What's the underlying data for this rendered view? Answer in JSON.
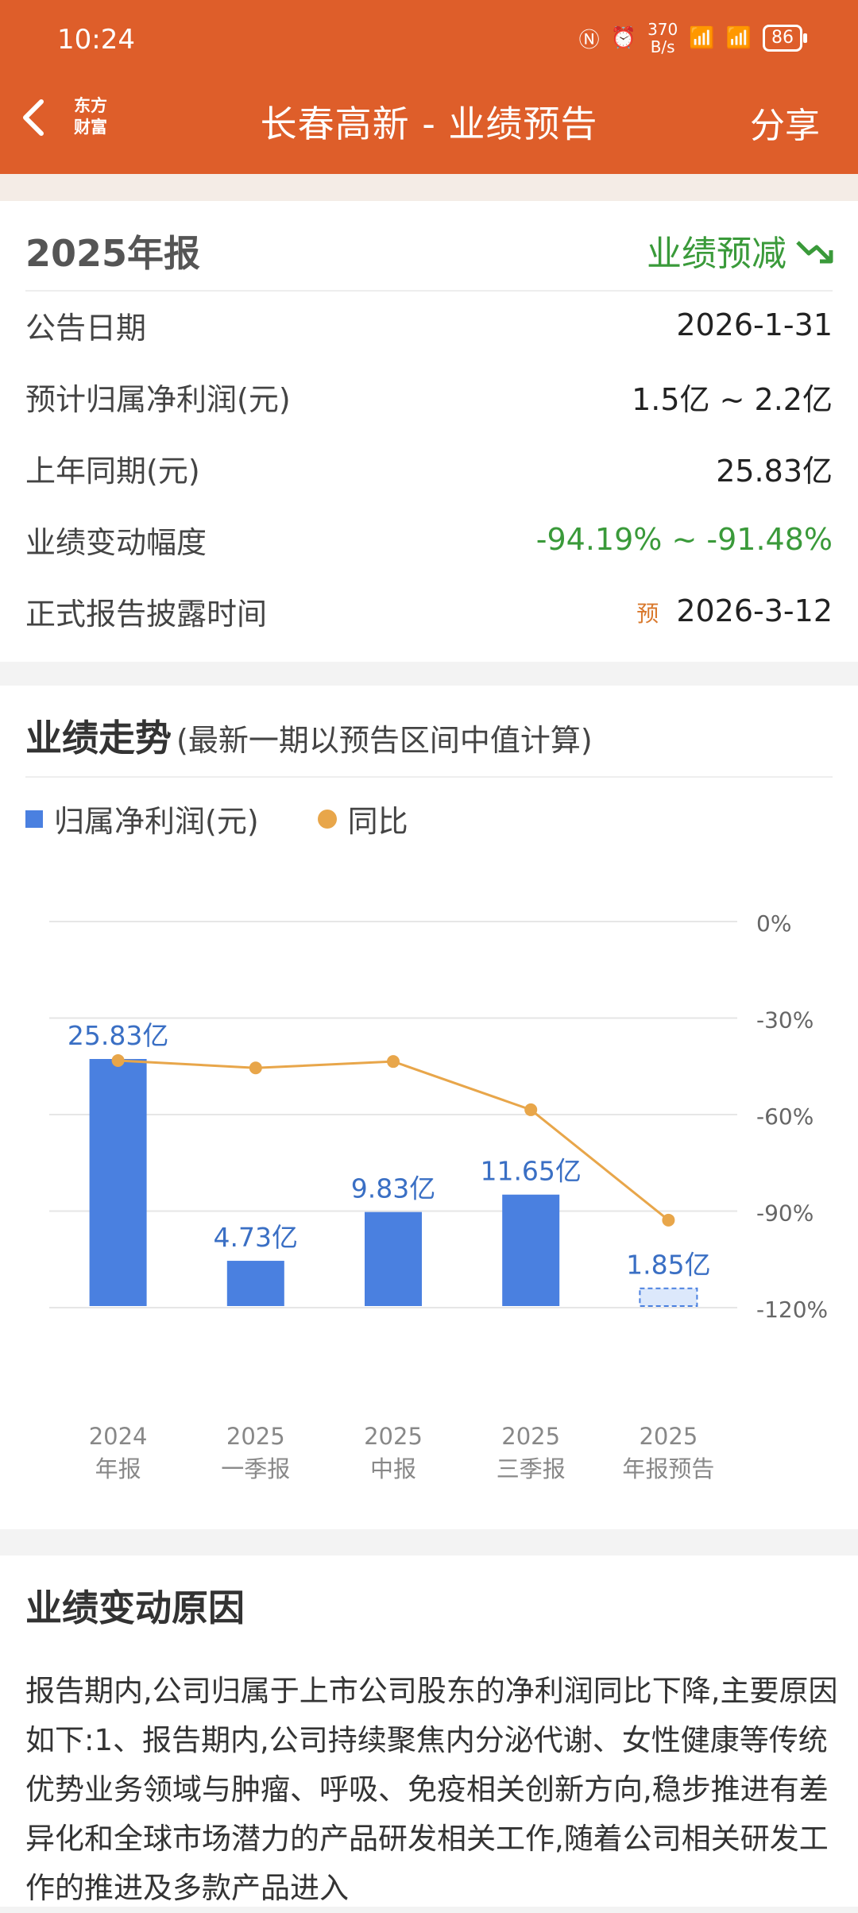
{
  "status_bar": {
    "time": "10:24",
    "net_speed_value": "370",
    "net_speed_unit": "B/s",
    "battery": "86"
  },
  "header": {
    "logo_line1": "东方",
    "logo_line2": "财富",
    "title": "长春高新 - 业绩预告",
    "share_label": "分享"
  },
  "report": {
    "year_label": "2025年报",
    "status_label": "业绩预减",
    "rows": [
      {
        "label": "公告日期",
        "value": "2026-1-31"
      },
      {
        "label": "预计归属净利润(元)",
        "value": "1.5亿 ~ 2.2亿"
      },
      {
        "label": "上年同期(元)",
        "value": "25.83亿"
      },
      {
        "label": "业绩变动幅度",
        "value": "-94.19% ~ -91.48%"
      },
      {
        "label": "正式报告披露时间",
        "prefix": "预",
        "value": "2026-3-12"
      }
    ]
  },
  "trend": {
    "title": "业绩走势",
    "subtitle": "(最新一期以预告区间中值计算)",
    "legend_bar": "归属净利润(元)",
    "legend_line": "同比"
  },
  "chart_data": {
    "type": "bar",
    "categories": [
      [
        "2024",
        "年报"
      ],
      [
        "2025",
        "一季报"
      ],
      [
        "2025",
        "中报"
      ],
      [
        "2025",
        "三季报"
      ],
      [
        "2025",
        "年报预告"
      ]
    ],
    "series": [
      {
        "name": "归属净利润(元)",
        "type": "bar",
        "values": [
          25.83,
          4.73,
          9.83,
          11.65,
          1.85
        ],
        "labels": [
          "25.83亿",
          "4.73亿",
          "9.83亿",
          "11.65亿",
          "1.85亿"
        ],
        "last_is_forecast": true
      },
      {
        "name": "同比",
        "type": "line",
        "axis": "right",
        "values": [
          -43.2,
          -45.5,
          -43.5,
          -58.5,
          -92.8
        ]
      }
    ],
    "right_axis": {
      "ticks": [
        "0%",
        "-30%",
        "-60%",
        "-90%",
        "-120%"
      ],
      "ylim": [
        -120,
        0
      ]
    },
    "colors": {
      "bar": "#4a80e0",
      "line": "#e8a64a",
      "label": "#3a6fc4"
    }
  },
  "reason": {
    "title": "业绩变动原因",
    "text": "报告期内,公司归属于上市公司股东的净利润同比下降,主要原因如下:1、报告期内,公司持续聚焦内分泌代谢、女性健康等传统优势业务领域与肿瘤、呼吸、免疫相关创新方向,稳步推进有差异化和全球市场潜力的产品研发相关工作,随着公司相关研发工作的推进及多款产品进入"
  }
}
